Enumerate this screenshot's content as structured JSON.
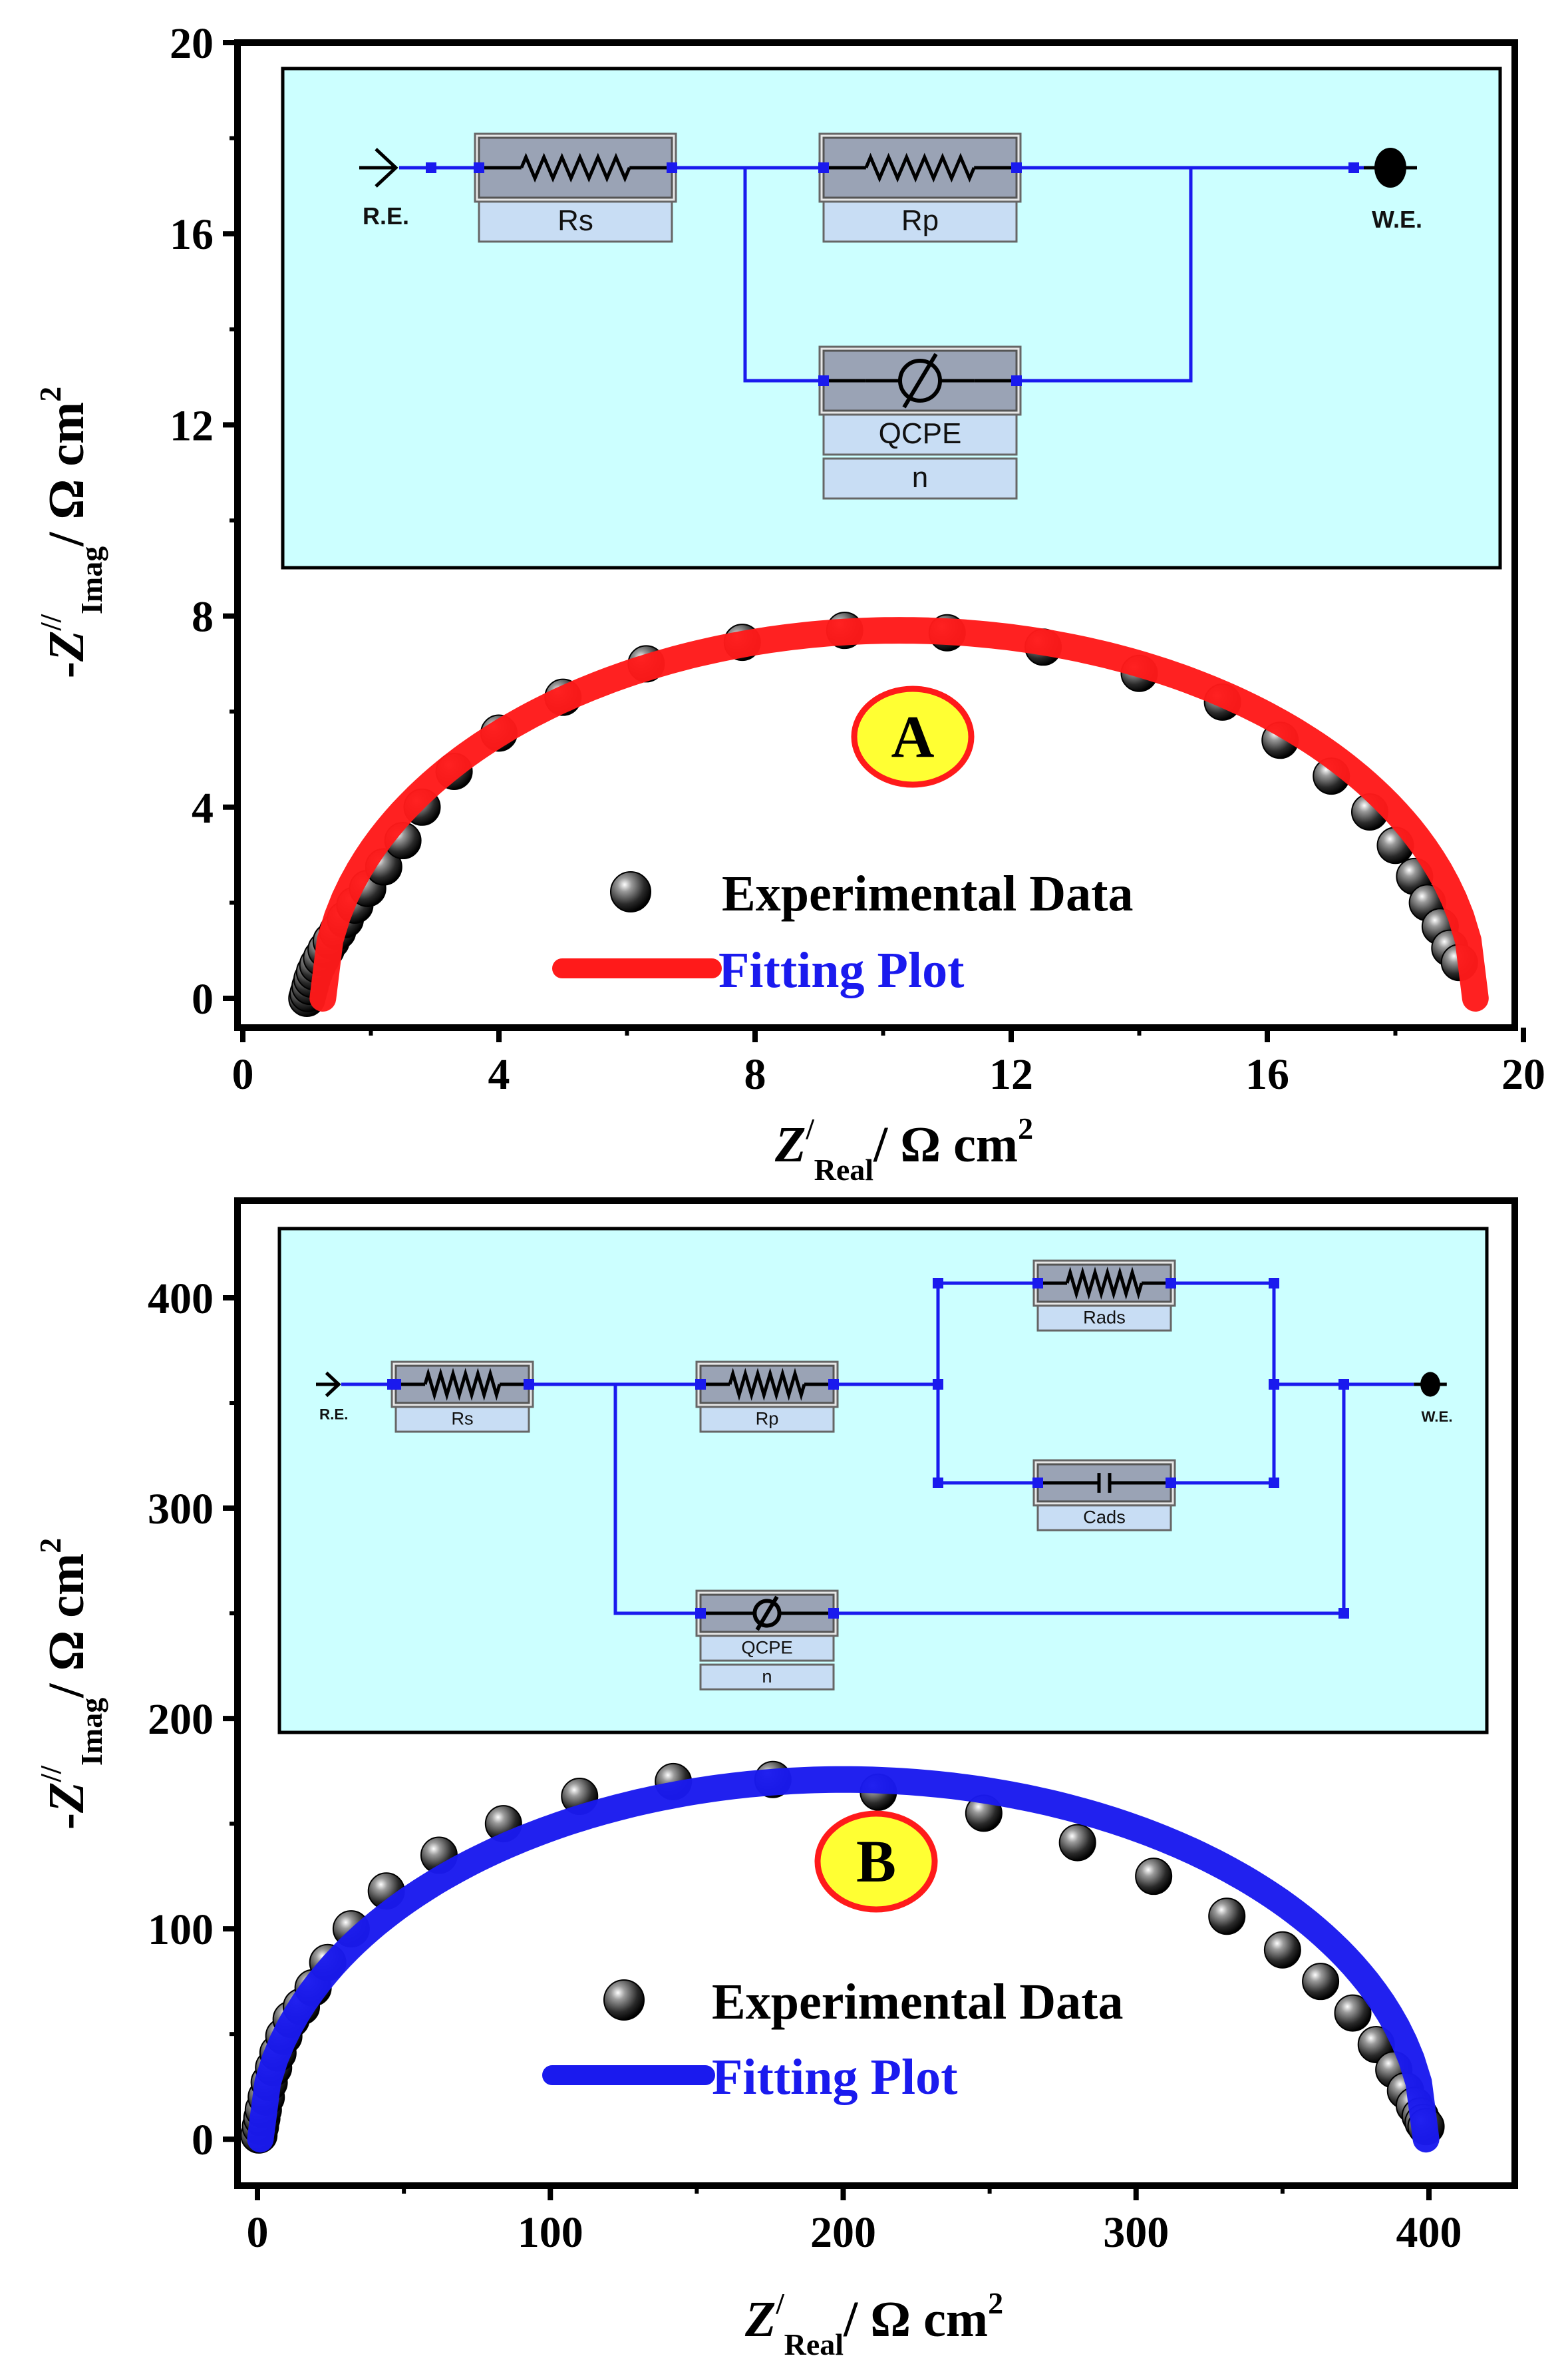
{
  "chart_data": [
    {
      "type": "scatter",
      "panel_label": "A",
      "title": "",
      "xlabel": {
        "symbol": "Z",
        "prime": "/",
        "sub": "Real",
        "unit": "/ Ω cm",
        "sup": "2"
      },
      "ylabel": {
        "minus": "-",
        "symbol": "Z",
        "prime": "//",
        "sub": "Imag",
        "unit": "/ Ω cm",
        "sup": "2"
      },
      "xlim": [
        0,
        20
      ],
      "ylim": [
        0,
        20
      ],
      "xticks": [
        0,
        4,
        8,
        12,
        16,
        20
      ],
      "yticks": [
        0,
        4,
        8,
        12,
        16,
        20
      ],
      "xtick_labels": [
        "0",
        "4",
        "8",
        "12",
        "16",
        "20"
      ],
      "ytick_labels": [
        "0",
        "4",
        "8",
        "12",
        "16",
        "20"
      ],
      "grid": false,
      "legend": {
        "position": "center",
        "entries": [
          {
            "label": "Experimental Data",
            "marker": "sphere"
          },
          {
            "label": "Fitting Plot",
            "marker": "line"
          }
        ]
      },
      "series": [
        {
          "name": "Experimental Data",
          "kind": "points",
          "color": "#1a1a1a",
          "x": [
            1.0,
            1.02,
            1.05,
            1.08,
            1.12,
            1.17,
            1.23,
            1.3,
            1.38,
            1.48,
            1.6,
            1.75,
            1.95,
            2.2,
            2.5,
            2.8,
            3.3,
            4.0,
            5.0,
            6.3,
            7.8,
            9.4,
            11.0,
            12.5,
            14.0,
            15.3,
            16.2,
            17.0,
            17.6,
            18.0,
            18.3,
            18.5,
            18.7,
            18.85,
            19.0
          ],
          "y": [
            0.0,
            0.1,
            0.25,
            0.4,
            0.55,
            0.7,
            0.85,
            1.02,
            1.2,
            1.4,
            1.65,
            1.95,
            2.3,
            2.75,
            3.3,
            4.0,
            4.75,
            5.55,
            6.3,
            7.0,
            7.45,
            7.7,
            7.65,
            7.35,
            6.8,
            6.2,
            5.4,
            4.65,
            3.9,
            3.2,
            2.55,
            2.0,
            1.5,
            1.05,
            0.75
          ]
        },
        {
          "name": "Fitting Plot",
          "kind": "semicircle_fit",
          "color": "#ff1a1a",
          "center_x": 10.25,
          "radius_x": 9.0,
          "height": 7.7,
          "x_start": 1.25,
          "x_end": 19.25
        }
      ],
      "inset": {
        "type": "equivalent_circuit",
        "background": "#ccffff",
        "terminal_start": "R.E.",
        "terminal_end": "W.E.",
        "elements": [
          {
            "id": "Rs",
            "label": "Rs",
            "symbol": "resistor",
            "params": [
              "Rs"
            ]
          },
          {
            "id": "Rp",
            "label": "Rp",
            "symbol": "resistor",
            "params": [
              "Rp"
            ]
          },
          {
            "id": "CPE",
            "label": "QCPE",
            "symbol": "cpe",
            "params": [
              "QCPE",
              "n"
            ]
          }
        ]
      }
    },
    {
      "type": "scatter",
      "panel_label": "B",
      "title": "",
      "xlabel": {
        "symbol": "Z",
        "prime": "/",
        "sub": "Real",
        "unit": "/ Ω cm",
        "sup": "2"
      },
      "ylabel": {
        "minus": "-",
        "symbol": "Z",
        "prime": "//",
        "sub": "Imag",
        "unit": "/ Ω cm",
        "sup": "2"
      },
      "xlim": [
        -5,
        410
      ],
      "ylim": [
        -5,
        425
      ],
      "xticks": [
        0,
        100,
        200,
        300,
        400
      ],
      "yticks": [
        0,
        100,
        200,
        300,
        400
      ],
      "xtick_labels": [
        "0",
        "100",
        "200",
        "300",
        "400"
      ],
      "ytick_labels": [
        "0",
        "100",
        "200",
        "300",
        "400"
      ],
      "grid": false,
      "legend": {
        "position": "center",
        "entries": [
          {
            "label": "Experimental Data",
            "marker": "sphere"
          },
          {
            "label": "Fitting Plot",
            "marker": "line"
          }
        ]
      },
      "series": [
        {
          "name": "Experimental Data",
          "kind": "points",
          "color": "#1a1a1a",
          "x": [
            0.5,
            1.0,
            1.5,
            2.0,
            3.0,
            4.0,
            5.5,
            7.0,
            9.0,
            11.5,
            15.0,
            19.0,
            24.0,
            32.0,
            44.0,
            62.0,
            84.0,
            110.0,
            142.0,
            176.0,
            212.0,
            248.0,
            280.0,
            306.0,
            331.0,
            350.0,
            363.0,
            374.0,
            382.0,
            388.0,
            392.0,
            395.0,
            397.0,
            398.0,
            399.0
          ],
          "y": [
            2,
            6,
            10,
            14,
            20,
            27,
            34,
            41,
            49,
            57,
            63,
            72,
            84,
            100,
            118,
            135,
            150,
            163,
            170,
            171,
            165,
            155,
            141,
            125,
            106,
            90,
            75,
            60,
            45,
            33,
            23,
            16,
            11,
            8,
            6
          ]
        },
        {
          "name": "Fitting Plot",
          "kind": "semicircle_fit",
          "color": "#1a1aee",
          "center_x": 200.0,
          "radius_x": 199.0,
          "height": 171.0,
          "x_start": 1.0,
          "x_end": 399.0
        }
      ],
      "inset": {
        "type": "equivalent_circuit",
        "background": "#ccffff",
        "terminal_start": "R.E.",
        "terminal_end": "W.E.",
        "elements": [
          {
            "id": "Rs",
            "label": "Rs",
            "symbol": "resistor",
            "params": [
              "Rs"
            ]
          },
          {
            "id": "Rp",
            "label": "Rp",
            "symbol": "resistor",
            "params": [
              "Rp"
            ]
          },
          {
            "id": "Rads",
            "label": "Rads",
            "symbol": "resistor",
            "params": [
              "Rads"
            ]
          },
          {
            "id": "Cads",
            "label": "Cads",
            "symbol": "capacitor",
            "params": [
              "Cads"
            ]
          },
          {
            "id": "CPE",
            "label": "QCPE",
            "symbol": "cpe",
            "params": [
              "QCPE",
              "n"
            ]
          }
        ]
      }
    }
  ]
}
